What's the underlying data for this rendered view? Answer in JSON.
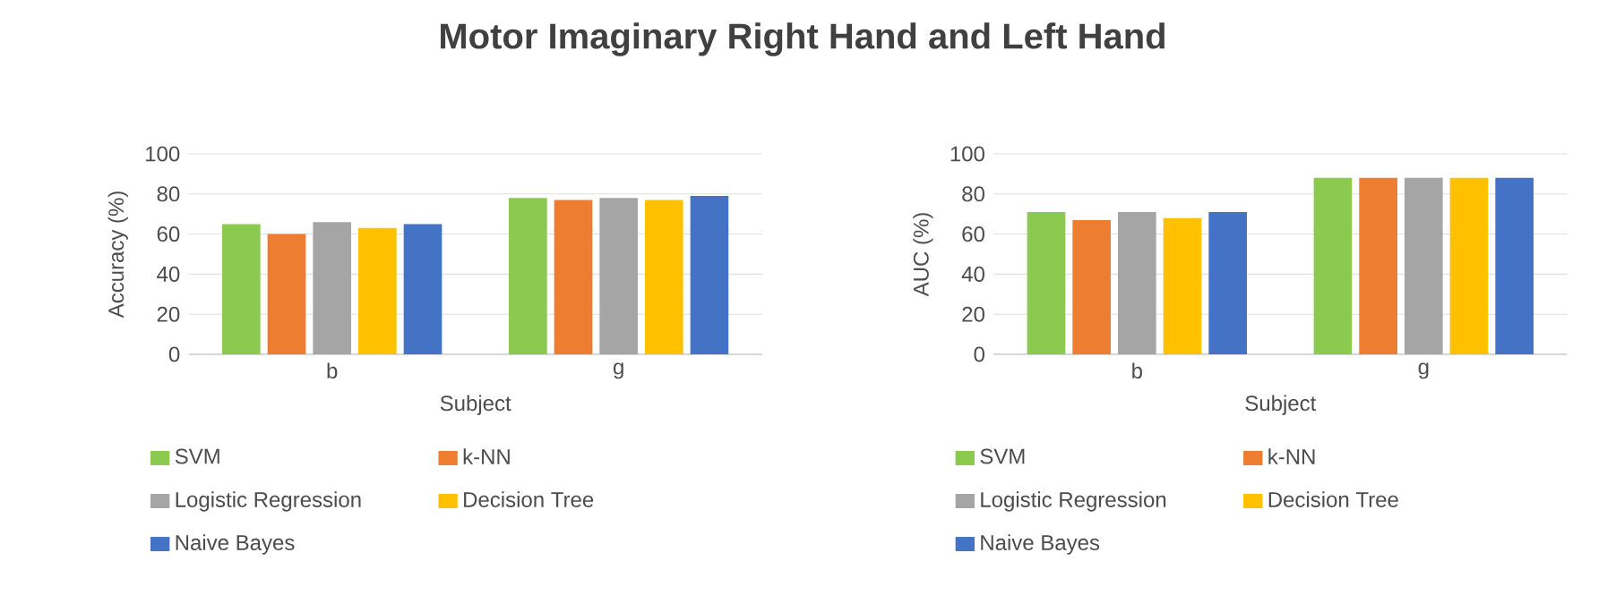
{
  "chart_data": [
    {
      "type": "bar",
      "title": "Motor Imaginary Right Hand and Left Hand",
      "xlabel": "Subject",
      "ylabel": "Accuracy (%)",
      "categories": [
        "b",
        "g"
      ],
      "series": [
        {
          "name": "SVM",
          "color": "#8cc94f",
          "values": [
            65,
            78
          ]
        },
        {
          "name": "k-NN",
          "color": "#ed7d31",
          "values": [
            60,
            77
          ]
        },
        {
          "name": "Logistic Regression",
          "color": "#a5a5a5",
          "values": [
            66,
            78
          ]
        },
        {
          "name": "Decision Tree",
          "color": "#ffc000",
          "values": [
            63,
            77
          ]
        },
        {
          "name": "Naive Bayes",
          "color": "#4472c4",
          "values": [
            65,
            79
          ]
        }
      ],
      "ylim": [
        0,
        100
      ],
      "yticks": [
        0,
        20,
        40,
        60,
        80,
        100
      ],
      "grid": "y",
      "legend": "bottom"
    },
    {
      "type": "bar",
      "xlabel": "Subject",
      "ylabel": "AUC (%)",
      "categories": [
        "b",
        "g"
      ],
      "series": [
        {
          "name": "SVM",
          "color": "#8cc94f",
          "values": [
            71,
            88
          ]
        },
        {
          "name": "k-NN",
          "color": "#ed7d31",
          "values": [
            67,
            88
          ]
        },
        {
          "name": "Logistic Regression",
          "color": "#a5a5a5",
          "values": [
            71,
            88
          ]
        },
        {
          "name": "Decision Tree",
          "color": "#ffc000",
          "values": [
            68,
            88
          ]
        },
        {
          "name": "Naive Bayes",
          "color": "#4472c4",
          "values": [
            71,
            88
          ]
        }
      ],
      "ylim": [
        0,
        100
      ],
      "yticks": [
        0,
        20,
        40,
        60,
        80,
        100
      ],
      "grid": "y",
      "legend": "bottom"
    }
  ]
}
